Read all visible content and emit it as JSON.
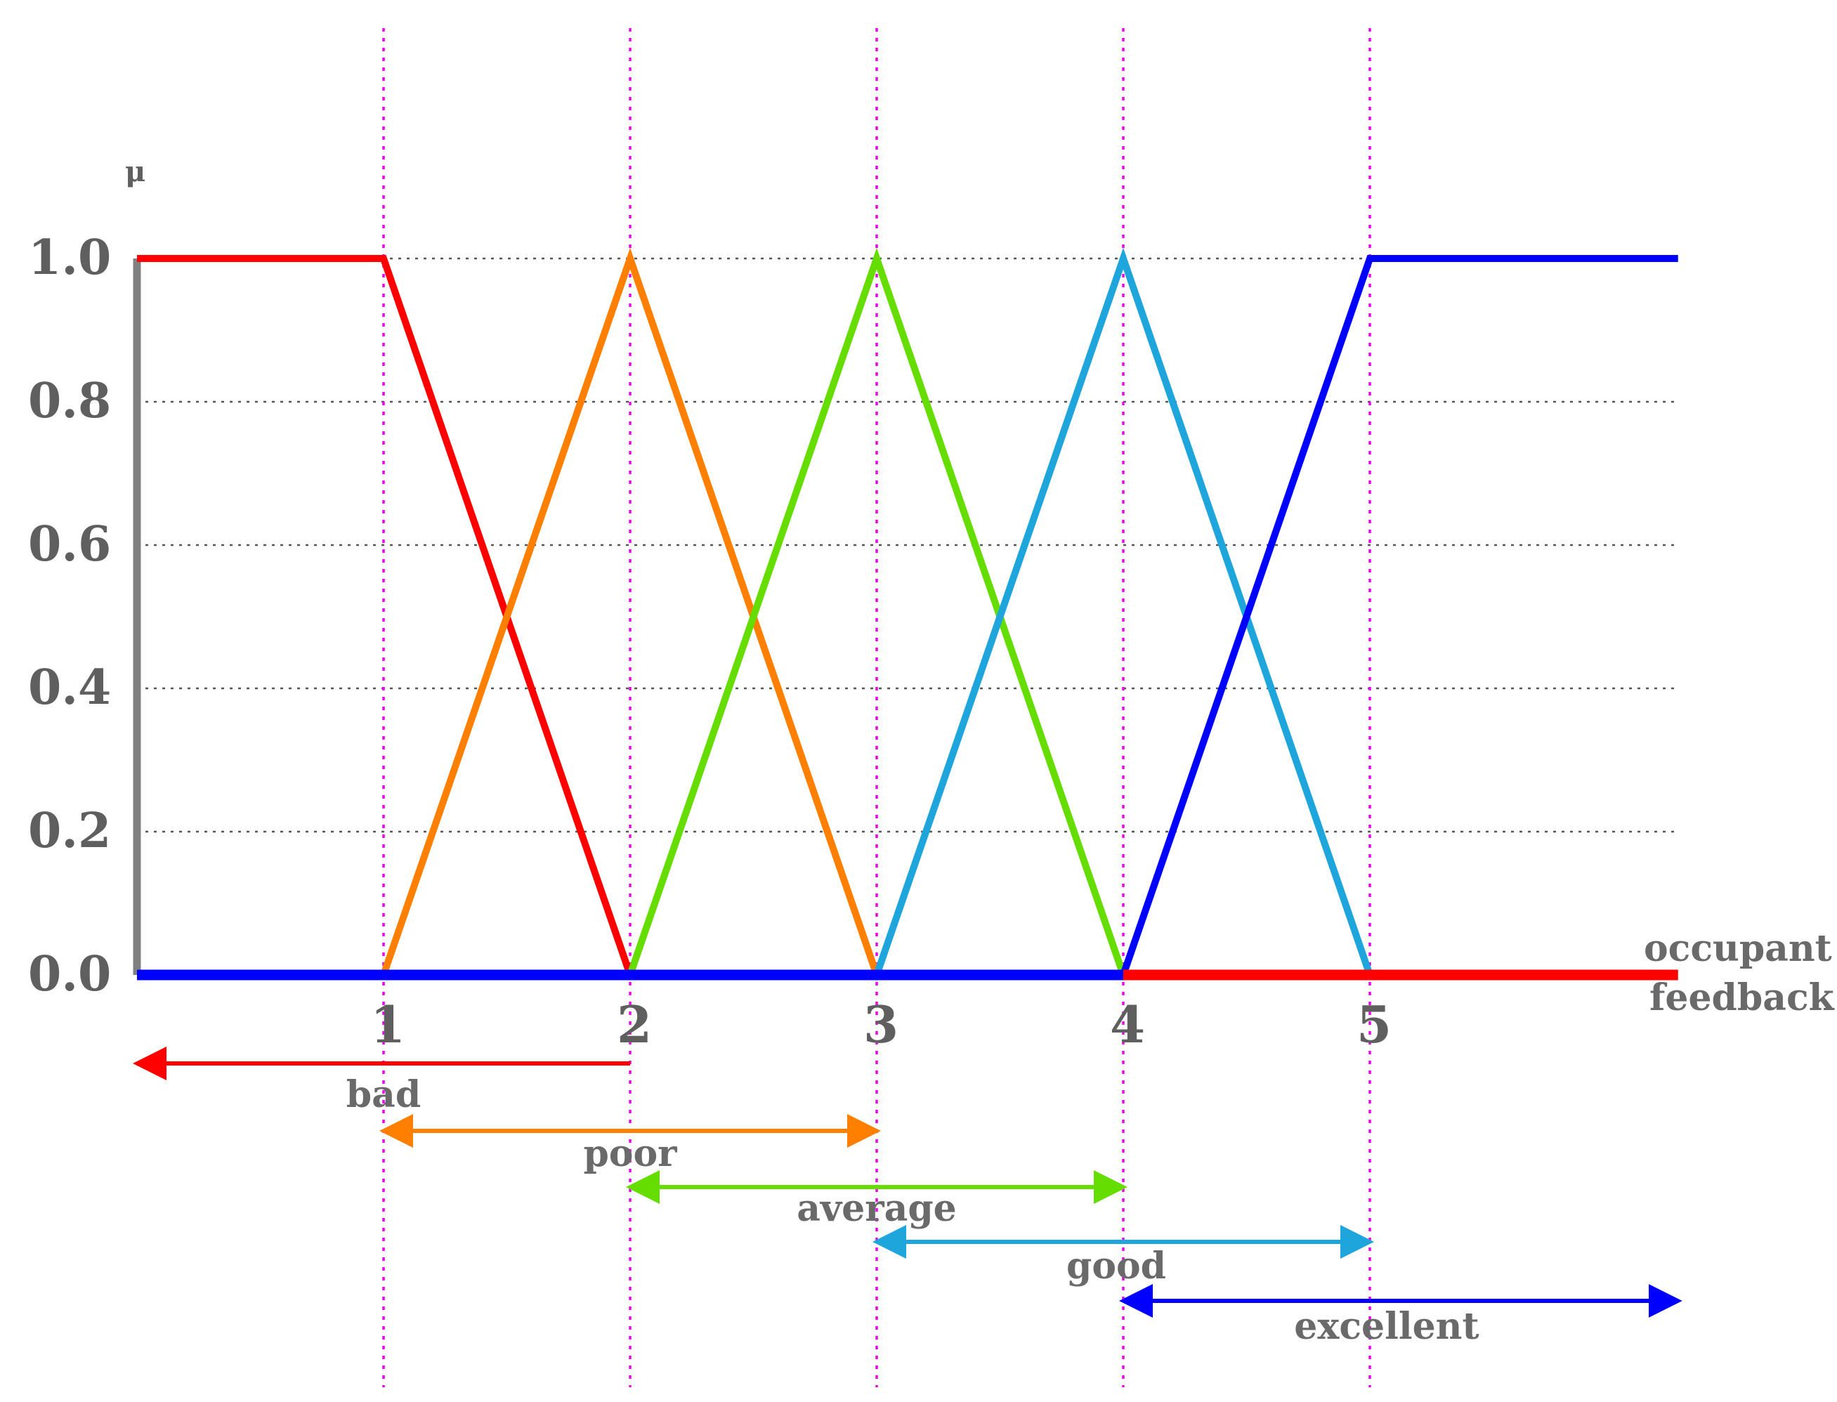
{
  "chart_data": {
    "type": "line",
    "ylabel": "μ",
    "xlabel_lines": [
      "occupant",
      "feedback"
    ],
    "x_ticks": [
      "1",
      "2",
      "3",
      "4",
      "5"
    ],
    "y_ticks": [
      "0.0",
      "0.2",
      "0.4",
      "0.6",
      "0.8",
      "1.0"
    ],
    "xlim": [
      0,
      6.25
    ],
    "ylim": [
      0,
      1
    ],
    "grid": true,
    "series": [
      {
        "key": "bad",
        "color": "#ff0000",
        "points": [
          [
            0,
            1
          ],
          [
            1,
            1
          ],
          [
            2,
            0
          ]
        ]
      },
      {
        "key": "poor",
        "color": "#ff7f00",
        "points": [
          [
            1,
            0
          ],
          [
            2,
            1
          ],
          [
            3,
            0
          ]
        ]
      },
      {
        "key": "average",
        "color": "#66dd00",
        "points": [
          [
            2,
            0
          ],
          [
            3,
            1
          ],
          [
            4,
            0
          ]
        ]
      },
      {
        "key": "good",
        "color": "#1ea5dc",
        "points": [
          [
            3,
            0
          ],
          [
            4,
            1
          ],
          [
            5,
            0
          ]
        ]
      },
      {
        "key": "excellent",
        "color": "#0000ff",
        "points": [
          [
            4,
            0
          ],
          [
            5,
            1
          ],
          [
            6.25,
            1
          ]
        ]
      }
    ],
    "ranges": [
      {
        "label": "bad",
        "from": 0,
        "to": 2,
        "color": "#ff0000",
        "arrows": "left"
      },
      {
        "label": "poor",
        "from": 1,
        "to": 3,
        "color": "#ff7f00",
        "arrows": "both"
      },
      {
        "label": "average",
        "from": 2,
        "to": 4,
        "color": "#66dd00",
        "arrows": "both"
      },
      {
        "label": "good",
        "from": 3,
        "to": 5,
        "color": "#1ea5dc",
        "arrows": "both"
      },
      {
        "label": "excellent",
        "from": 4,
        "to": 6.25,
        "color": "#0000ff",
        "arrows": "both"
      }
    ],
    "baseline_segments": [
      {
        "from": 0,
        "to": 4,
        "color": "#0000ff"
      },
      {
        "from": 4,
        "to": 6.25,
        "color": "#ff0000"
      }
    ],
    "guide_color": "#ee00ee",
    "axis_color": "#808080"
  }
}
